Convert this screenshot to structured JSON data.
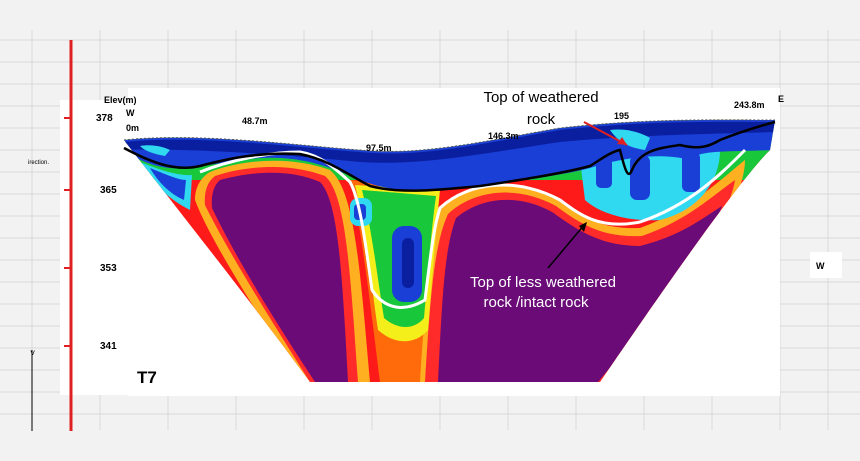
{
  "profile_name": "T7",
  "axis": {
    "elevation_title": "Elev(m)",
    "elevation_ticks": [
      "378",
      "365",
      "353",
      "341"
    ]
  },
  "distance_marks": [
    "0m",
    "48.7m",
    "97.5m",
    "146.3m",
    "195",
    "243.8m"
  ],
  "direction": {
    "left": "W",
    "right": "E",
    "side_right": "W",
    "left_fragment": "irection.",
    "left_mark": "˅"
  },
  "annotations": {
    "weathered_top": [
      "Top of weathered",
      "rock"
    ],
    "less_weathered": [
      "Top of less weathered",
      "rock /intact rock"
    ]
  },
  "colors": {
    "highly_weathered": "#1a3fd6",
    "moderate": "#18c83a",
    "transition": "#f4ef1a",
    "intact": "#6a0b78",
    "deep_anomaly": "#ff6a0a",
    "red_marker": "#e02020"
  }
}
